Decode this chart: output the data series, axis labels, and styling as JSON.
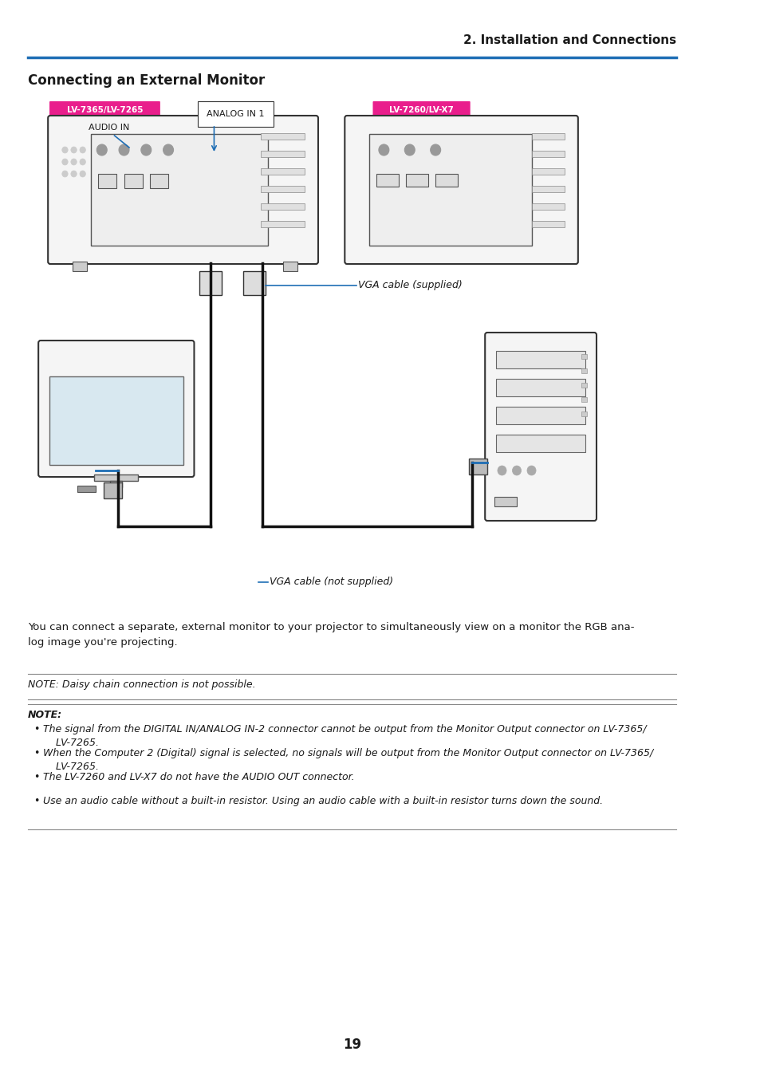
{
  "page_title": "2. Installation and Connections",
  "section_title": "Connecting an External Monitor",
  "header_line_color": "#1e6eb5",
  "page_number": "19",
  "body_text": "You can connect a separate, external monitor to your projector to simultaneously view on a monitor the RGB ana-\nlog image you're projecting.",
  "note1_text": "NOTE: Daisy chain connection is not possible.",
  "note2_header": "NOTE:",
  "note2_bullets": [
    "The signal from the DIGITAL IN/ANALOG IN-2 connector cannot be output from the Monitor Output connector on LV-7365/\n    LV-7265.",
    "When the Computer 2 (Digital) signal is selected, no signals will be output from the Monitor Output connector on LV-7365/\n    LV-7265.",
    "The LV-7260 and LV-X7 do not have the AUDIO OUT connector.",
    "Use an audio cable without a built-in resistor. Using an audio cable with a built-in resistor turns down the sound."
  ],
  "label_lv1": "LV-7365/LV-7265",
  "label_lv1_bg": "#e91e8c",
  "label_lv2": "LV-7260/LV-X7",
  "label_lv2_bg": "#e91e8c",
  "label_analog": "ANALOG IN 1",
  "label_audio": "AUDIO IN",
  "label_vga_supplied": "VGA cable (supplied)",
  "label_vga_not_supplied": "VGA cable (not supplied)",
  "connector_line_color": "#1e6eb5",
  "diagram_line_color": "#333333",
  "bg_color": "#ffffff",
  "text_color": "#1a1a1a",
  "divider_color": "#333333"
}
